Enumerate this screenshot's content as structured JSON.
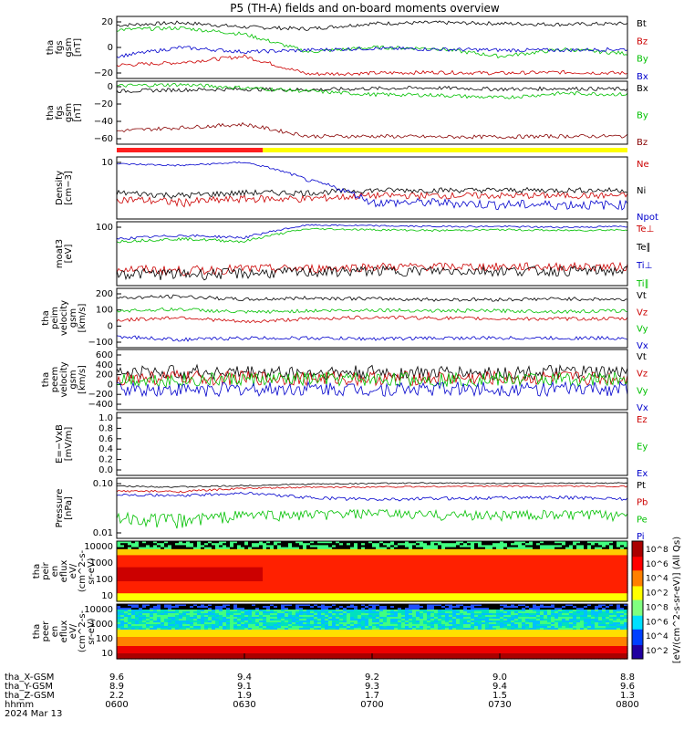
{
  "title": "P5 (TH-A) fields and on-board moments overview",
  "date_label": "2024 Mar 13",
  "x_axis": {
    "ticks": [
      "0600",
      "0630",
      "0700",
      "0730",
      "0800"
    ],
    "row_names": [
      "tha_X-GSM",
      "tha_Y-GSM",
      "tha_Z-GSM",
      "hhmm"
    ],
    "rows": [
      [
        "9.6",
        "9.4",
        "9.2",
        "9.0",
        "8.8"
      ],
      [
        "8.9",
        "9.1",
        "9.3",
        "9.4",
        "9.6"
      ],
      [
        "2.2",
        "1.9",
        "1.7",
        "1.5",
        "1.3"
      ]
    ]
  },
  "colorbar": {
    "ticks_top": [
      "10^8",
      "10^6",
      "10^4",
      "10^2"
    ],
    "ticks_bottom": [
      "10^8",
      "10^6",
      "10^4",
      "10^2"
    ],
    "label": "[eV/(cm^2-s-sr-eV)] (All Qs)"
  },
  "chart_data": [
    {
      "type": "line",
      "ylabel": "tha\nfgs\ngsm\n[nT]",
      "yticks": [
        "20",
        "0",
        "−20"
      ],
      "ylim": [
        -30,
        40
      ],
      "series": [
        {
          "name": "Bt",
          "color": "#000000",
          "values": [
            30,
            33,
            28,
            26,
            32,
            33,
            32,
            31,
            32
          ]
        },
        {
          "name": "Bz",
          "color": "#cc0000",
          "values": [
            -15,
            -12,
            -5,
            -25,
            -24,
            -23,
            -24,
            -23,
            -24
          ]
        },
        {
          "name": "By",
          "color": "#00c000",
          "values": [
            25,
            27,
            20,
            0,
            5,
            4,
            -5,
            3,
            -2
          ]
        },
        {
          "name": "Bx",
          "color": "#0000cc",
          "values": [
            -5,
            5,
            0,
            2,
            4,
            3,
            2,
            2,
            3
          ]
        }
      ]
    },
    {
      "type": "line",
      "ylabel": "tha\nfgs\ngsm\n[nT]",
      "yticks": [
        "0",
        "−20",
        "−40",
        "−60"
      ],
      "ylim": [
        -80,
        15
      ],
      "series": [
        {
          "name": "Bx",
          "color": "#000000",
          "values": [
            0,
            2,
            3,
            2,
            4,
            5,
            3,
            4,
            3
          ]
        },
        {
          "name": "By",
          "color": "#00c000",
          "values": [
            8,
            10,
            5,
            0,
            -5,
            -6,
            -10,
            -3,
            -5
          ]
        },
        {
          "name": "Bz",
          "color": "#880000",
          "values": [
            -60,
            -55,
            -50,
            -68,
            -68,
            -69,
            -69,
            -68,
            -68
          ]
        }
      ]
    },
    {
      "type": "line",
      "ylabel": "Density\n[cm−3]",
      "yticks": [
        "10"
      ],
      "ylim": [
        3,
        40
      ],
      "series": [
        {
          "name": "Ne",
          "color": "#cc0000",
          "values": [
            7,
            6,
            7,
            7,
            8,
            8,
            8,
            8,
            8
          ]
        },
        {
          "name": "Ni",
          "color": "#000000",
          "values": [
            9,
            8,
            9,
            9,
            10,
            10,
            10,
            10,
            10
          ]
        },
        {
          "name": "Npot",
          "color": "#0000cc",
          "values": [
            30,
            28,
            32,
            15,
            6,
            6,
            5.5,
            5.5,
            5.5
          ]
        }
      ]
    },
    {
      "type": "line",
      "ylabel": "moat3\n[eV]",
      "yticks": [
        "100"
      ],
      "ylim": [
        30,
        400
      ],
      "series": [
        {
          "name": "Te⊥",
          "color": "#cc0000",
          "values": [
            60,
            55,
            60,
            60,
            65,
            65,
            65,
            65,
            65
          ]
        },
        {
          "name": "Te∥",
          "color": "#000000",
          "values": [
            50,
            48,
            50,
            52,
            55,
            55,
            55,
            55,
            55
          ]
        },
        {
          "name": "Ti⊥",
          "color": "#0000cc",
          "values": [
            200,
            230,
            210,
            350,
            340,
            330,
            330,
            320,
            330
          ]
        },
        {
          "name": "Ti∥",
          "color": "#00c000",
          "values": [
            180,
            200,
            180,
            300,
            290,
            280,
            290,
            280,
            290
          ]
        }
      ]
    },
    {
      "type": "line",
      "ylabel": "tha\npeim\nvelocity\ngsm\n[km/s]",
      "yticks": [
        "200",
        "100",
        "0",
        "−100"
      ],
      "ylim": [
        -150,
        220
      ],
      "series": [
        {
          "name": "Vt",
          "color": "#000000",
          "values": [
            160,
            170,
            150,
            160,
            155,
            150,
            150,
            155,
            150
          ]
        },
        {
          "name": "Vz",
          "color": "#cc0000",
          "values": [
            20,
            40,
            10,
            30,
            40,
            35,
            30,
            30,
            30
          ]
        },
        {
          "name": "Vy",
          "color": "#00c000",
          "values": [
            80,
            90,
            70,
            80,
            85,
            80,
            80,
            75,
            80
          ]
        },
        {
          "name": "Vx",
          "color": "#0000cc",
          "values": [
            -80,
            -100,
            -90,
            -90,
            -95,
            -90,
            -90,
            -90,
            -90
          ]
        }
      ]
    },
    {
      "type": "line",
      "ylabel": "tha\npeem\nvelocity\ngsm\n[km/s]",
      "yticks": [
        "600",
        "400",
        "200",
        "0",
        "−200",
        "−400"
      ],
      "ylim": [
        -500,
        650
      ],
      "series": [
        {
          "name": "Vt",
          "color": "#000000",
          "values": [
            200,
            220,
            210,
            200,
            210,
            200,
            200,
            210,
            200
          ]
        },
        {
          "name": "Vz",
          "color": "#cc0000",
          "values": [
            100,
            110,
            100,
            100,
            100,
            100,
            100,
            100,
            100
          ]
        },
        {
          "name": "Vy",
          "color": "#00c000",
          "values": [
            80,
            60,
            80,
            80,
            80,
            80,
            80,
            80,
            80
          ]
        },
        {
          "name": "Vx",
          "color": "#0000cc",
          "values": [
            -100,
            -120,
            -110,
            -100,
            -110,
            -100,
            -100,
            -110,
            -100
          ]
        }
      ]
    },
    {
      "type": "line",
      "ylabel": "E=−VxB\n[mV/m]",
      "yticks": [
        "1.0",
        "0.8",
        "0.6",
        "0.4",
        "0.2",
        "0.0"
      ],
      "ylim": [
        -0.05,
        1.0
      ],
      "series": [
        {
          "name": "Ez",
          "color": "#cc0000",
          "values": []
        },
        {
          "name": "Ey",
          "color": "#00c000",
          "values": []
        },
        {
          "name": "Ex",
          "color": "#0000cc",
          "values": []
        }
      ]
    },
    {
      "type": "line",
      "ylabel": "Pressure\n[nPa]",
      "yticks": [
        "0.10",
        "0.01"
      ],
      "ylim": [
        0.01,
        0.6
      ],
      "series": [
        {
          "name": "Pt",
          "color": "#000000",
          "values": [
            0.35,
            0.33,
            0.36,
            0.4,
            0.42,
            0.43,
            0.42,
            0.42,
            0.43
          ]
        },
        {
          "name": "Pb",
          "color": "#cc0000",
          "values": [
            0.25,
            0.24,
            0.3,
            0.32,
            0.33,
            0.34,
            0.35,
            0.35,
            0.34
          ]
        },
        {
          "name": "Pe",
          "color": "#00c000",
          "values": [
            0.04,
            0.035,
            0.05,
            0.05,
            0.055,
            0.05,
            0.05,
            0.05,
            0.05
          ]
        },
        {
          "name": "Pi",
          "color": "#0000cc",
          "values": [
            0.2,
            0.18,
            0.22,
            0.16,
            0.14,
            0.15,
            0.16,
            0.16,
            0.15
          ]
        }
      ]
    },
    {
      "type": "heatmap",
      "ylabel": "tha\npeir\nen\neflux\neV/\n(cm^2-s-\nsr-eV)",
      "yticks": [
        "10000",
        "1000",
        "100",
        "10"
      ]
    },
    {
      "type": "heatmap",
      "ylabel": "tha\npeer\nen\neflux\neV/\n(cm^2-s-\nsr-eV)",
      "yticks": [
        "10000",
        "1000",
        "100",
        "10"
      ]
    }
  ]
}
